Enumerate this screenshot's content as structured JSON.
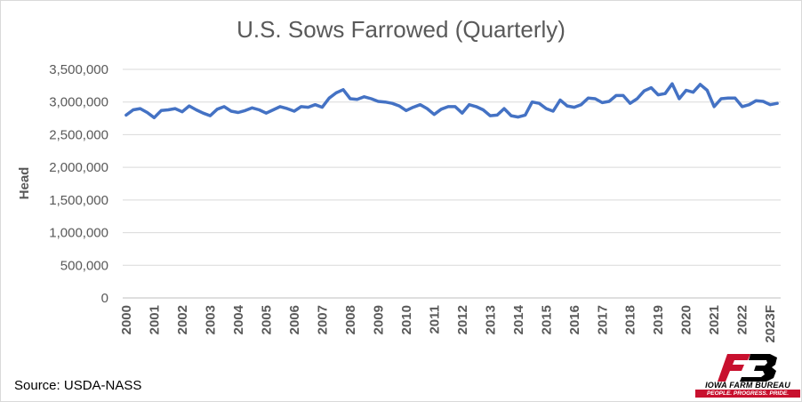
{
  "chart_data": {
    "type": "line",
    "title": "U.S. Sows Farrowed (Quarterly)",
    "ylabel": "Head",
    "xlabel": "",
    "ylim": [
      0,
      3500000
    ],
    "yticks": [
      "0",
      "500,000",
      "1,000,000",
      "1,500,000",
      "2,000,000",
      "2,500,000",
      "3,000,000",
      "3,500,000"
    ],
    "ytick_values": [
      0,
      500000,
      1000000,
      1500000,
      2000000,
      2500000,
      3000000,
      3500000
    ],
    "xticks": [
      "2000",
      "2001",
      "2002",
      "2003",
      "2004",
      "2005",
      "2006",
      "2007",
      "2008",
      "2009",
      "2010",
      "2011",
      "2012",
      "2013",
      "2014",
      "2015",
      "2016",
      "2017",
      "2018",
      "2019",
      "2020",
      "2021",
      "2022",
      "2023F"
    ],
    "grid": "horizontal",
    "line_color": "#4472c4",
    "series": [
      {
        "values": [
          2800000,
          2880000,
          2900000,
          2840000,
          2760000,
          2870000,
          2880000,
          2900000,
          2850000,
          2940000,
          2880000,
          2830000,
          2790000,
          2890000,
          2930000,
          2860000,
          2840000,
          2870000,
          2910000,
          2880000,
          2830000,
          2880000,
          2930000,
          2900000,
          2860000,
          2930000,
          2920000,
          2960000,
          2920000,
          3060000,
          3140000,
          3190000,
          3050000,
          3040000,
          3080000,
          3050000,
          3010000,
          3000000,
          2980000,
          2940000,
          2870000,
          2920000,
          2960000,
          2900000,
          2810000,
          2890000,
          2930000,
          2930000,
          2830000,
          2960000,
          2930000,
          2880000,
          2790000,
          2800000,
          2900000,
          2790000,
          2770000,
          2800000,
          3000000,
          2980000,
          2900000,
          2860000,
          3030000,
          2940000,
          2920000,
          2960000,
          3060000,
          3050000,
          2990000,
          3010000,
          3100000,
          3100000,
          2980000,
          3050000,
          3170000,
          3220000,
          3110000,
          3130000,
          3280000,
          3050000,
          3180000,
          3150000,
          3270000,
          3180000,
          2930000,
          3050000,
          3060000,
          3060000,
          2930000,
          2960000,
          3020000,
          3010000,
          2960000,
          2980000
        ]
      }
    ]
  },
  "source_text": "Source: USDA-NASS",
  "logo": {
    "brand": "IOWA FARM BUREAU",
    "tagline": "PEOPLE. PROGRESS. PRIDE.",
    "color": "#c8102e"
  }
}
